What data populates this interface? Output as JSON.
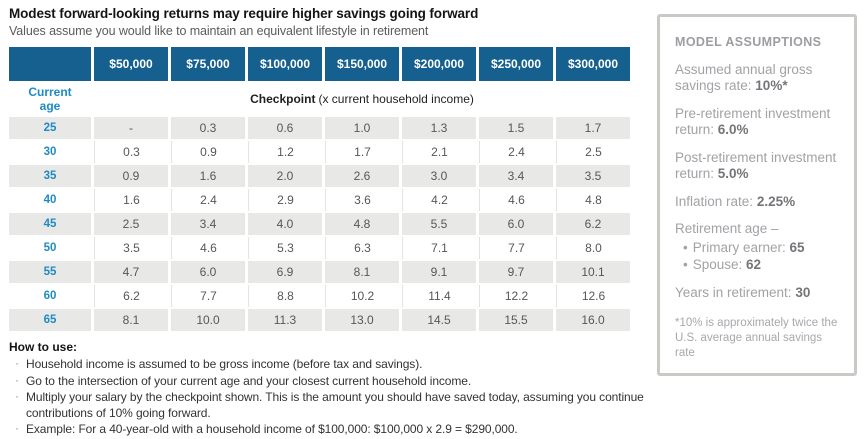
{
  "header": {
    "title": "Modest forward-looking returns may require higher savings going forward",
    "subtitle": "Values assume you would like to maintain an equivalent lifestyle in retirement"
  },
  "table": {
    "income_headers": [
      "$50,000",
      "$75,000",
      "$100,000",
      "$150,000",
      "$200,000",
      "$250,000",
      "$300,000"
    ],
    "row_header_label": "Current age",
    "checkpoint_bold": "Checkpoint",
    "checkpoint_note": "(x current household income)",
    "rows": [
      {
        "age": "25",
        "values": [
          "-",
          "0.3",
          "0.6",
          "1.0",
          "1.3",
          "1.5",
          "1.7"
        ]
      },
      {
        "age": "30",
        "values": [
          "0.3",
          "0.9",
          "1.2",
          "1.7",
          "2.1",
          "2.4",
          "2.5"
        ]
      },
      {
        "age": "35",
        "values": [
          "0.9",
          "1.6",
          "2.0",
          "2.6",
          "3.0",
          "3.4",
          "3.5"
        ]
      },
      {
        "age": "40",
        "values": [
          "1.6",
          "2.4",
          "2.9",
          "3.6",
          "4.2",
          "4.6",
          "4.8"
        ]
      },
      {
        "age": "45",
        "values": [
          "2.5",
          "3.4",
          "4.0",
          "4.8",
          "5.5",
          "6.0",
          "6.2"
        ]
      },
      {
        "age": "50",
        "values": [
          "3.5",
          "4.6",
          "5.3",
          "6.3",
          "7.1",
          "7.7",
          "8.0"
        ]
      },
      {
        "age": "55",
        "values": [
          "4.7",
          "6.0",
          "6.9",
          "8.1",
          "9.1",
          "9.7",
          "10.1"
        ]
      },
      {
        "age": "60",
        "values": [
          "6.2",
          "7.7",
          "8.8",
          "10.2",
          "11.4",
          "12.2",
          "12.6"
        ]
      },
      {
        "age": "65",
        "values": [
          "8.1",
          "10.0",
          "11.3",
          "13.0",
          "14.5",
          "15.5",
          "16.0"
        ]
      }
    ]
  },
  "how_to_use": {
    "heading": "How to use:",
    "bullet_char": "·",
    "bullets": [
      "Household income is assumed to be gross income (before tax and savings).",
      "Go to the intersection of your current age and your closest current household income.",
      "Multiply your salary by the checkpoint shown. This is the amount you should have saved today, assuming you continue contributions of 10% going forward.",
      "Example: For a 40-year-old with a household income of $100,000: $100,000 x 2.9 = $290,000."
    ]
  },
  "assumptions": {
    "title": "MODEL ASSUMPTIONS",
    "items": [
      {
        "text": "Assumed annual gross savings rate: ",
        "value": "10%*"
      },
      {
        "text": "Pre-retirement investment return: ",
        "value": "6.0%"
      },
      {
        "text": "Post-retirement investment return: ",
        "value": "5.0%"
      },
      {
        "text": "Inflation rate: ",
        "value": "2.25%"
      }
    ],
    "retirement_age": {
      "label": "Retirement age –",
      "bullet_char": "•",
      "items": [
        {
          "text": "Primary earner: ",
          "value": "65"
        },
        {
          "text": "Spouse: ",
          "value": "62"
        }
      ]
    },
    "years_in_retirement": {
      "text": "Years in retirement: ",
      "value": "30"
    },
    "footnote": "*10% is approximately twice the U.S. average annual savings rate"
  },
  "colors": {
    "header_blue": "#15608f",
    "age_blue": "#1e8bc3",
    "row_stripe_gray": "#e8e8e7",
    "sidebar_border_gray": "#c9c9c6",
    "value_gray": "#55575a"
  }
}
